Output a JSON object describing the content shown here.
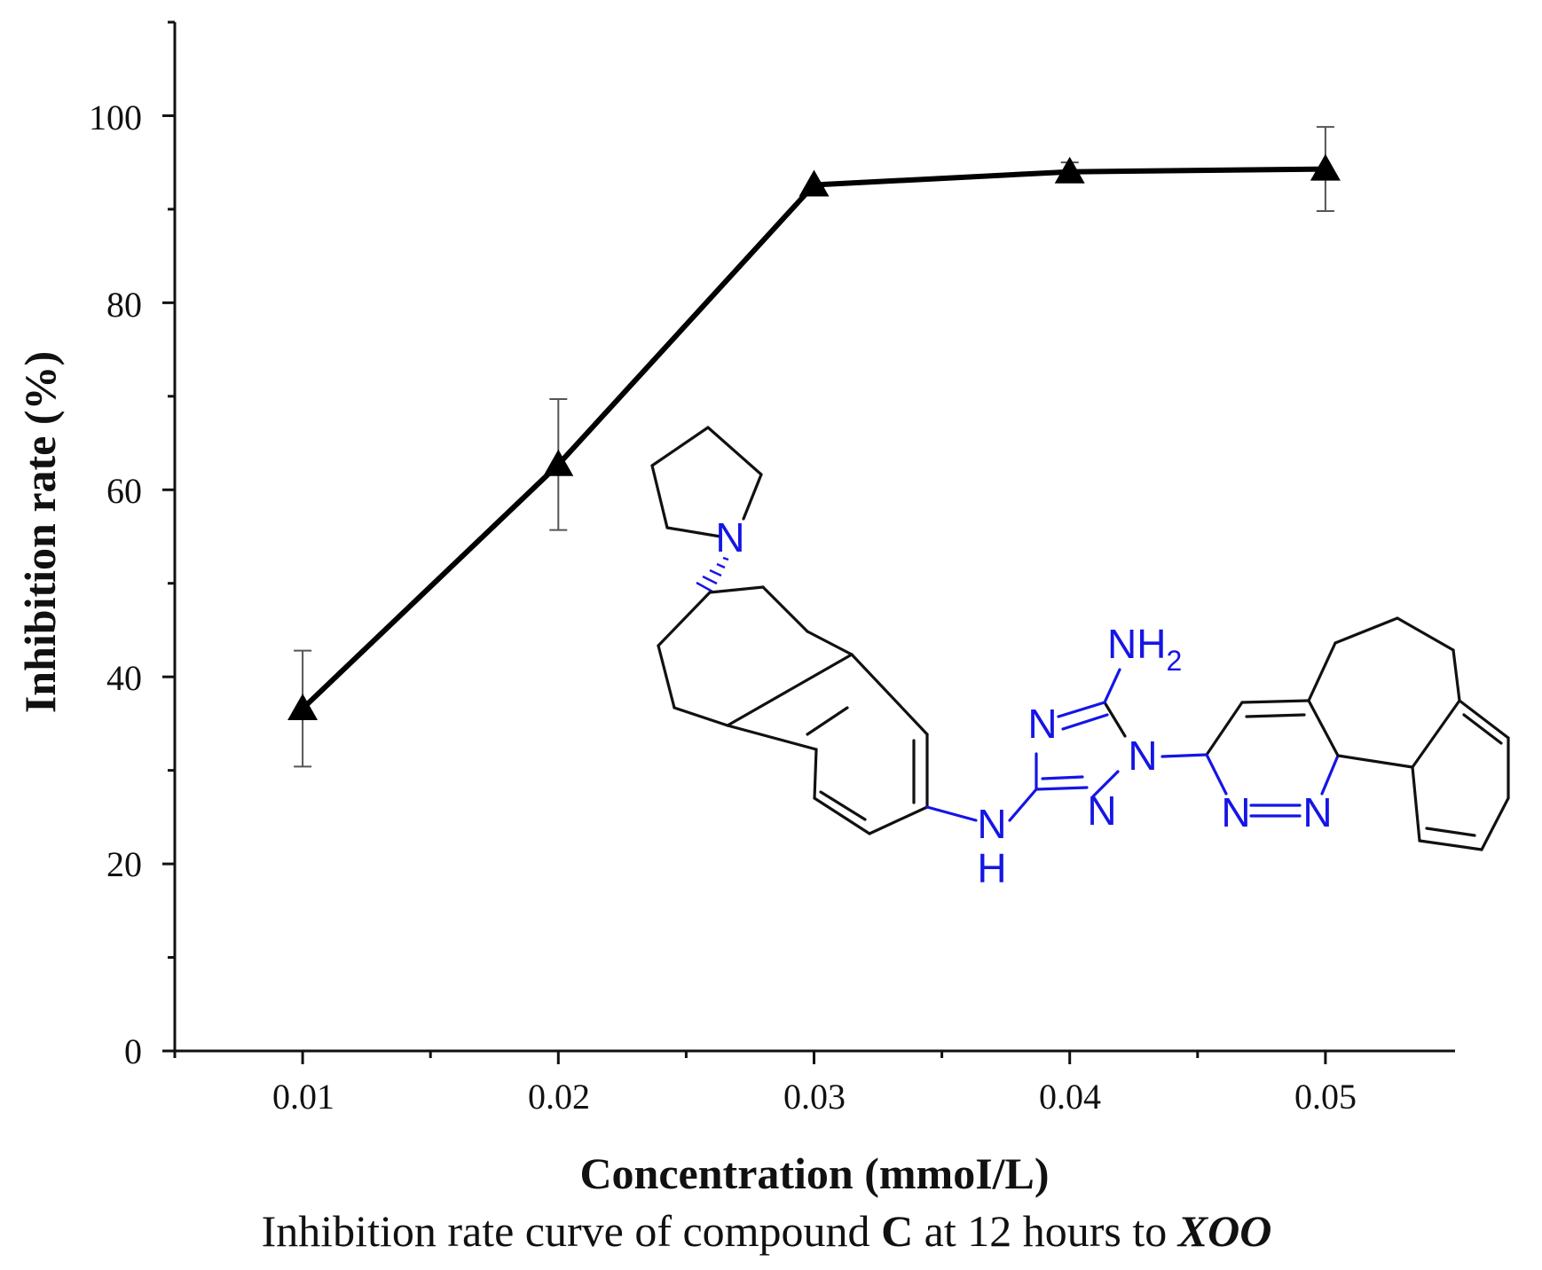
{
  "chart_data": {
    "type": "line",
    "title": "",
    "xlabel": "Concentration (mmoI/L)",
    "ylabel": "Inhibition rate (%)",
    "xlim": [
      0.005,
      0.055
    ],
    "ylim": [
      0,
      110
    ],
    "x_ticks": [
      "0.01",
      "0.02",
      "0.03",
      "0.04",
      "0.05"
    ],
    "y_ticks": [
      "0",
      "20",
      "40",
      "60",
      "80",
      "100"
    ],
    "grid": false,
    "legend": "none",
    "marker": "triangle",
    "color": "#000000",
    "series": [
      {
        "x": [
          0.01,
          0.02,
          0.03,
          0.04,
          0.05
        ],
        "y": [
          36.6,
          62.7,
          92.6,
          94.0,
          94.3
        ],
        "error": [
          6.2,
          7.0,
          0.0,
          1.0,
          4.5
        ]
      }
    ]
  },
  "caption": {
    "part1": "Inhibition rate curve of compound ",
    "compound": "C",
    "part2": " at 12 hours to ",
    "organism": "XOO"
  },
  "molecule": {
    "atoms": {
      "pyrrolidine_n": "N",
      "amine_n": "N",
      "amine_h": "H",
      "nh2_n": "NH",
      "nh2_sub": "2",
      "triazole_n3": "N",
      "triazole_n1": "N",
      "triazole_n2": "N",
      "pyridazine_n1": "N",
      "pyridazine_n2": "N"
    },
    "colors": {
      "heteroatom": "#1515e6",
      "carbon_bond": "#111111"
    }
  }
}
